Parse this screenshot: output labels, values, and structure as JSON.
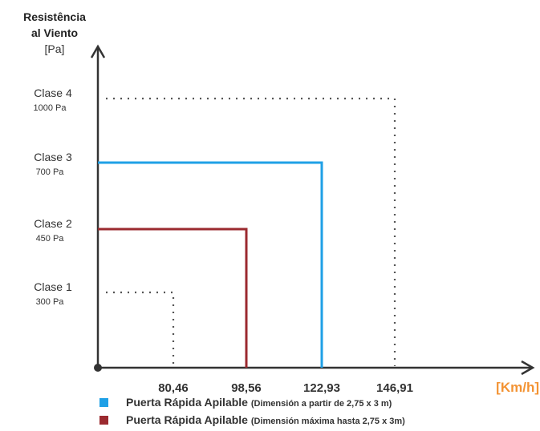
{
  "chart_data": {
    "type": "line",
    "y_axis": {
      "label_line1": "Resistência",
      "label_line2": "al Viento",
      "unit": "[Pa]"
    },
    "x_axis": {
      "unit": "[Km/h]",
      "unit_color": "#f39333",
      "ticks": [
        "80,46",
        "98,56",
        "122,93",
        "146,91"
      ]
    },
    "classes": [
      {
        "name": "Clase 1",
        "pressure": "300 Pa",
        "value": 300,
        "speed": 80.46,
        "style": "dotted"
      },
      {
        "name": "Clase 2",
        "pressure": "450 Pa",
        "value": 450,
        "speed": 98.56,
        "style": "solid"
      },
      {
        "name": "Clase 3",
        "pressure": "700 Pa",
        "value": 700,
        "speed": 122.93,
        "style": "solid"
      },
      {
        "name": "Clase 4",
        "pressure": "1000 Pa",
        "value": 1000,
        "speed": 146.91,
        "style": "dotted"
      }
    ],
    "series": [
      {
        "name": "Puerta Rápida Apilable",
        "note": "(Dimensión a partir de 2,75 x 3 m)",
        "color": "#1fa0e6",
        "x": 122.93,
        "y": 700
      },
      {
        "name": "Puerta Rápida Apilable",
        "note": "(Dimensión máxima hasta 2,75 x 3m)",
        "color": "#9b2a2f",
        "x": 98.56,
        "y": 450
      }
    ],
    "dotted_color": "#555555",
    "axis_color": "#333333"
  }
}
